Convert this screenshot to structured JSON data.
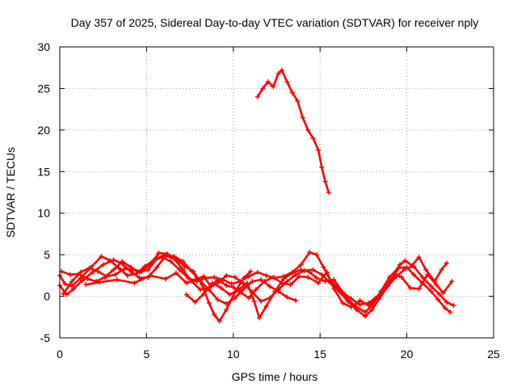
{
  "chart_data": {
    "type": "scatter",
    "title": "Day 357 of 2025, Sidereal Day-to-day VTEC variation (SDTVAR) for receiver nply",
    "xlabel": "GPS time / hours",
    "ylabel": "SDTVAR / TECUs",
    "xlim": [
      0,
      25
    ],
    "ylim": [
      -5,
      30
    ],
    "xticks": [
      "0",
      "5",
      "10",
      "15",
      "20",
      "25"
    ],
    "yticks": [
      "-5",
      "0",
      "5",
      "10",
      "15",
      "20",
      "25",
      "30"
    ],
    "grid": true,
    "legend": "none",
    "color": "#ff0000",
    "series": [
      {
        "name": "s1",
        "points": [
          [
            0.0,
            2.5
          ],
          [
            0.3,
            1.5
          ],
          [
            0.7,
            1.2
          ],
          [
            1.2,
            2.2
          ],
          [
            1.8,
            3.5
          ],
          [
            2.4,
            4.8
          ],
          [
            2.9,
            4.3
          ],
          [
            3.4,
            3.4
          ],
          [
            3.9,
            2.5
          ],
          [
            4.4,
            2.7
          ],
          [
            4.9,
            3.6
          ],
          [
            5.4,
            4.3
          ],
          [
            5.9,
            4.7
          ],
          [
            6.4,
            4.2
          ],
          [
            6.9,
            3.2
          ],
          [
            7.4,
            2.2
          ],
          [
            7.9,
            1.8
          ],
          [
            8.4,
            2.2
          ],
          [
            8.9,
            2.3
          ],
          [
            9.4,
            2.0
          ],
          [
            9.9,
            1.5
          ],
          [
            10.4,
            1.8
          ],
          [
            10.9,
            2.4
          ],
          [
            11.4,
            2.9
          ],
          [
            11.9,
            2.5
          ],
          [
            12.4,
            2.2
          ],
          [
            12.9,
            2.4
          ],
          [
            13.4,
            2.9
          ],
          [
            13.9,
            3.8
          ],
          [
            14.4,
            5.3
          ],
          [
            14.8,
            5.0
          ],
          [
            15.2,
            3.5
          ],
          [
            15.6,
            1.9
          ],
          [
            16.1,
            0.9
          ],
          [
            16.6,
            -0.4
          ],
          [
            17.1,
            -1.3
          ],
          [
            17.6,
            -1.9
          ],
          [
            18.0,
            -1.1
          ],
          [
            18.5,
            0.6
          ],
          [
            19.0,
            2.3
          ],
          [
            19.5,
            3.4
          ],
          [
            20.0,
            3.5
          ],
          [
            20.4,
            2.6
          ],
          [
            20.9,
            1.6
          ],
          [
            21.4,
            0.6
          ],
          [
            21.8,
            -0.4
          ],
          [
            22.2,
            -1.4
          ],
          [
            22.5,
            -1.9
          ]
        ]
      },
      {
        "name": "s2",
        "points": [
          [
            0.0,
            1.3
          ],
          [
            0.4,
            0.2
          ],
          [
            0.8,
            0.9
          ],
          [
            1.3,
            1.9
          ],
          [
            1.9,
            2.9
          ],
          [
            2.5,
            3.8
          ],
          [
            3.1,
            4.4
          ],
          [
            3.6,
            3.9
          ],
          [
            4.1,
            3.0
          ],
          [
            4.6,
            2.2
          ],
          [
            5.1,
            2.3
          ],
          [
            5.6,
            3.5
          ],
          [
            6.1,
            4.9
          ],
          [
            6.6,
            4.5
          ],
          [
            7.1,
            3.2
          ],
          [
            7.6,
            1.8
          ],
          [
            8.1,
            0.8
          ],
          [
            8.6,
            1.0
          ],
          [
            9.1,
            1.6
          ],
          [
            9.6,
            2.5
          ],
          [
            10.1,
            2.3
          ],
          [
            10.6,
            1.5
          ],
          [
            11.1,
            0.5
          ],
          [
            11.6,
            -0.6
          ],
          [
            12.1,
            -0.2
          ],
          [
            12.6,
            0.8
          ],
          [
            13.1,
            1.8
          ],
          [
            13.6,
            2.6
          ],
          [
            14.1,
            3.1
          ],
          [
            14.6,
            3.2
          ],
          [
            15.1,
            2.6
          ],
          [
            15.6,
            1.6
          ],
          [
            16.1,
            0.6
          ],
          [
            16.6,
            -0.6
          ],
          [
            17.1,
            -1.6
          ],
          [
            17.6,
            -2.4
          ],
          [
            18.0,
            -1.6
          ],
          [
            18.4,
            -0.3
          ],
          [
            18.9,
            1.2
          ],
          [
            19.4,
            2.4
          ],
          [
            19.9,
            3.3
          ],
          [
            20.4,
            3.6
          ],
          [
            20.9,
            2.3
          ],
          [
            21.4,
            1.2
          ],
          [
            21.9,
            0.2
          ],
          [
            22.3,
            -0.7
          ],
          [
            22.7,
            -1.1
          ]
        ]
      },
      {
        "name": "s3",
        "points": [
          [
            0.1,
            3.0
          ],
          [
            0.6,
            2.6
          ],
          [
            1.1,
            2.7
          ],
          [
            1.6,
            2.1
          ],
          [
            2.1,
            1.8
          ],
          [
            2.6,
            2.3
          ],
          [
            3.1,
            3.2
          ],
          [
            3.6,
            4.2
          ],
          [
            4.1,
            3.5
          ],
          [
            4.6,
            2.9
          ],
          [
            5.1,
            3.2
          ],
          [
            5.6,
            4.6
          ],
          [
            6.1,
            5.0
          ],
          [
            6.6,
            4.8
          ],
          [
            7.1,
            4.2
          ],
          [
            7.6,
            3.0
          ],
          [
            8.1,
            1.8
          ],
          [
            8.6,
            0.8
          ],
          [
            9.1,
            -0.4
          ],
          [
            9.6,
            -0.9
          ],
          [
            10.1,
            -0.2
          ],
          [
            10.6,
            0.9
          ],
          [
            11.1,
            1.8
          ],
          [
            11.6,
            2.0
          ],
          [
            12.1,
            1.2
          ],
          [
            12.6,
            0.6
          ],
          [
            13.1,
            -0.1
          ],
          [
            13.6,
            -0.5
          ]
        ]
      },
      {
        "name": "s4",
        "points": [
          [
            0.2,
            0.3
          ],
          [
            0.7,
            1.8
          ],
          [
            1.2,
            2.9
          ],
          [
            1.7,
            3.4
          ],
          [
            2.2,
            3.0
          ],
          [
            2.7,
            2.4
          ],
          [
            3.2,
            2.6
          ],
          [
            3.7,
            3.3
          ],
          [
            4.2,
            3.2
          ],
          [
            4.7,
            3.0
          ],
          [
            5.2,
            3.8
          ],
          [
            5.7,
            5.2
          ],
          [
            6.2,
            5.1
          ],
          [
            6.7,
            4.5
          ],
          [
            7.2,
            3.6
          ],
          [
            7.7,
            3.0
          ],
          [
            8.2,
            1.4
          ],
          [
            8.6,
            -0.8
          ],
          [
            8.9,
            -2.2
          ],
          [
            9.2,
            -3.0
          ],
          [
            9.6,
            -1.6
          ],
          [
            10.1,
            0.5
          ],
          [
            10.6,
            2.2
          ],
          [
            11.0,
            3.0
          ]
        ]
      },
      {
        "name": "s5",
        "points": [
          [
            7.3,
            0.2
          ],
          [
            7.8,
            -0.7
          ],
          [
            8.3,
            0.3
          ],
          [
            8.8,
            1.6
          ],
          [
            9.3,
            1.0
          ],
          [
            9.8,
            0.2
          ],
          [
            10.3,
            0.8
          ],
          [
            10.8,
            1.6
          ],
          [
            11.2,
            -0.6
          ],
          [
            11.5,
            -2.6
          ],
          [
            11.9,
            -1.2
          ],
          [
            12.4,
            0.6
          ],
          [
            12.9,
            2.1
          ],
          [
            13.4,
            2.8
          ],
          [
            13.9,
            3.2
          ],
          [
            14.4,
            2.9
          ],
          [
            14.8,
            2.2
          ],
          [
            15.3,
            1.8
          ],
          [
            15.8,
            2.0
          ],
          [
            16.3,
            0.5
          ],
          [
            16.8,
            -0.3
          ],
          [
            17.3,
            -1.0
          ],
          [
            17.8,
            -0.8
          ],
          [
            18.2,
            -0.2
          ],
          [
            18.7,
            0.9
          ],
          [
            19.2,
            2.1
          ],
          [
            19.6,
            3.8
          ],
          [
            19.9,
            4.3
          ],
          [
            20.3,
            3.7
          ],
          [
            20.7,
            4.7
          ],
          [
            21.1,
            3.2
          ],
          [
            21.6,
            1.8
          ],
          [
            22.0,
            3.2
          ],
          [
            22.3,
            4.0
          ]
        ]
      },
      {
        "name": "s6",
        "points": [
          [
            1.5,
            1.4
          ],
          [
            2.3,
            1.7
          ],
          [
            3.3,
            2.0
          ],
          [
            4.3,
            1.6
          ],
          [
            5.2,
            2.5
          ],
          [
            6.1,
            2.1
          ],
          [
            6.7,
            2.8
          ],
          [
            7.3,
            1.6
          ],
          [
            7.8,
            2.0
          ],
          [
            8.3,
            2.4
          ],
          [
            8.7,
            1.2
          ],
          [
            9.1,
            2.0
          ],
          [
            9.6,
            1.3
          ],
          [
            10.0,
            1.1
          ],
          [
            10.4,
            0.5
          ],
          [
            10.9,
            -0.2
          ],
          [
            11.3,
            0.8
          ],
          [
            11.8,
            1.8
          ],
          [
            12.3,
            2.3
          ],
          [
            12.8,
            1.6
          ],
          [
            13.3,
            1.4
          ],
          [
            13.8,
            2.4
          ],
          [
            14.3,
            2.3
          ],
          [
            14.9,
            1.6
          ],
          [
            15.4,
            2.9
          ],
          [
            15.8,
            0.9
          ],
          [
            16.3,
            -0.8
          ],
          [
            16.8,
            -1.3
          ],
          [
            17.3,
            -0.5
          ],
          [
            17.8,
            -1.1
          ],
          [
            18.3,
            -0.2
          ],
          [
            18.8,
            1.3
          ],
          [
            19.3,
            2.6
          ],
          [
            19.7,
            2.3
          ],
          [
            20.2,
            1.0
          ],
          [
            20.7,
            0.9
          ],
          [
            21.2,
            2.6
          ],
          [
            21.7,
            1.4
          ],
          [
            22.1,
            0.4
          ],
          [
            22.6,
            1.8
          ]
        ]
      },
      {
        "name": "s7",
        "points": [
          [
            11.4,
            24.0
          ],
          [
            11.7,
            25.0
          ],
          [
            12.0,
            25.8
          ],
          [
            12.3,
            25.2
          ],
          [
            12.6,
            26.8
          ],
          [
            12.8,
            27.2
          ],
          [
            13.1,
            25.8
          ],
          [
            13.4,
            24.5
          ],
          [
            13.7,
            23.5
          ],
          [
            14.0,
            21.5
          ],
          [
            14.3,
            20.0
          ],
          [
            14.6,
            19.0
          ],
          [
            14.9,
            17.6
          ],
          [
            15.1,
            15.5
          ],
          [
            15.3,
            13.8
          ],
          [
            15.5,
            12.5
          ]
        ]
      }
    ]
  }
}
